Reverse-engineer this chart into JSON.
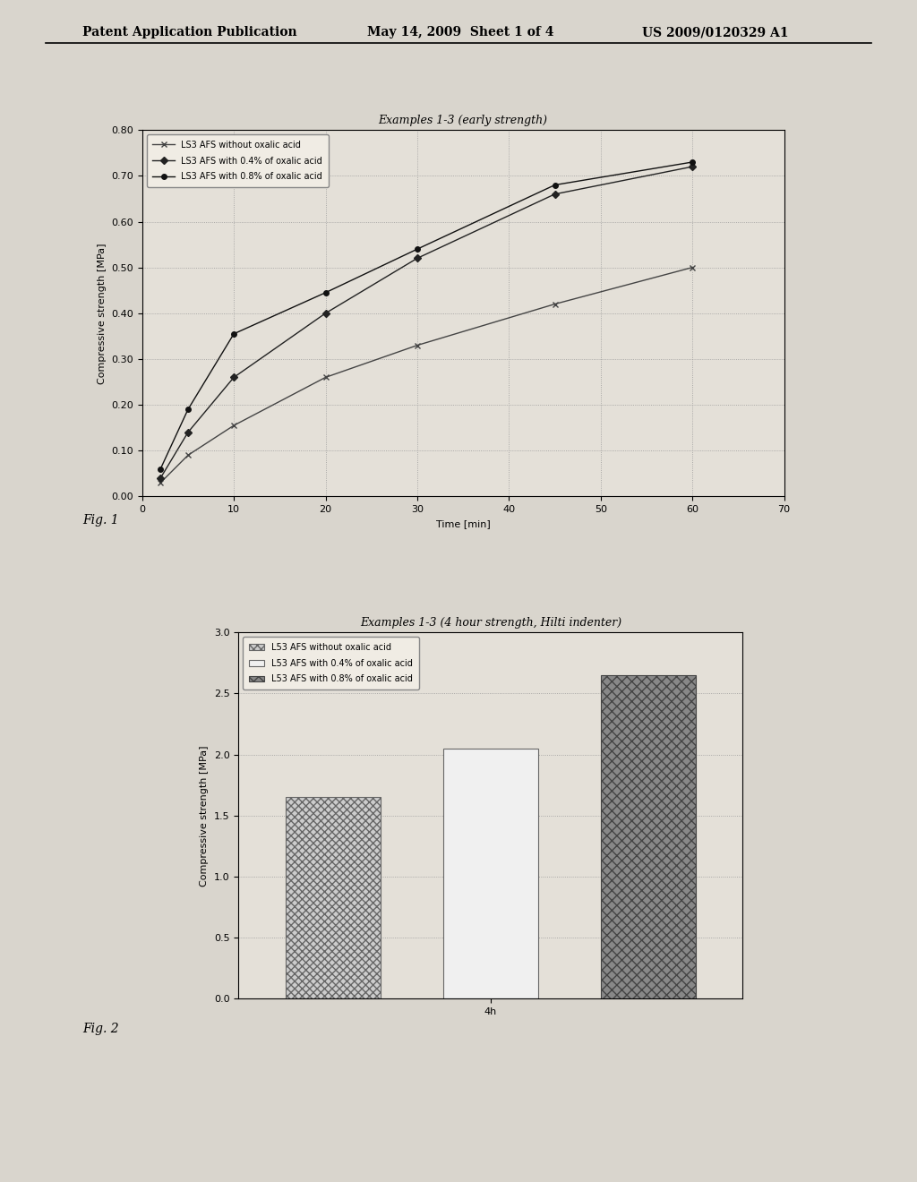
{
  "fig1_title": "Examples 1-3 (early strength)",
  "fig1_xlabel": "Time [min]",
  "fig1_ylabel": "Compressive strength [MPa]",
  "fig1_xlim": [
    0,
    70
  ],
  "fig1_ylim": [
    0.0,
    0.8
  ],
  "fig1_xticks": [
    0,
    10,
    20,
    30,
    40,
    50,
    60,
    70
  ],
  "fig1_yticks": [
    0.0,
    0.1,
    0.2,
    0.3,
    0.4,
    0.5,
    0.6,
    0.7,
    0.8
  ],
  "fig1_series": [
    {
      "label": "LS3 AFS without oxalic acid",
      "x": [
        2,
        5,
        10,
        20,
        30,
        45,
        60
      ],
      "y": [
        0.03,
        0.09,
        0.155,
        0.26,
        0.33,
        0.42,
        0.5
      ],
      "marker": "x",
      "color": "#444444",
      "linestyle": "-"
    },
    {
      "label": "LS3 AFS with 0.4% of oxalic acid",
      "x": [
        2,
        5,
        10,
        20,
        30,
        45,
        60
      ],
      "y": [
        0.04,
        0.14,
        0.26,
        0.4,
        0.52,
        0.66,
        0.72
      ],
      "marker": "D",
      "color": "#222222",
      "linestyle": "-"
    },
    {
      "label": "LS3 AFS with 0.8% of oxalic acid",
      "x": [
        2,
        5,
        10,
        20,
        30,
        45,
        60
      ],
      "y": [
        0.06,
        0.19,
        0.355,
        0.445,
        0.54,
        0.68,
        0.73
      ],
      "marker": "o",
      "color": "#111111",
      "linestyle": "-"
    }
  ],
  "fig1_label": "Fig. 1",
  "fig2_title": "Examples 1-3 (4 hour strength, Hilti indenter)",
  "fig2_xlabel": "4h",
  "fig2_ylabel": "Compressive strength [MPa]",
  "fig2_xlim": [
    -0.6,
    2.6
  ],
  "fig2_ylim": [
    0.0,
    3.0
  ],
  "fig2_yticks": [
    0.0,
    0.5,
    1.0,
    1.5,
    2.0,
    2.5,
    3.0
  ],
  "fig2_bars": [
    {
      "label": "L53 AFS without oxalic acid",
      "value": 1.65,
      "hatch": "xxxx",
      "facecolor": "#cccccc",
      "edgecolor": "#666666"
    },
    {
      "label": "L53 AFS with 0.4% of oxalic acid",
      "value": 2.05,
      "hatch": "",
      "facecolor": "#f0f0f0",
      "edgecolor": "#666666"
    },
    {
      "label": "L53 AFS with 0.8% of oxalic acid",
      "value": 2.65,
      "hatch": "xxx",
      "facecolor": "#888888",
      "edgecolor": "#444444"
    }
  ],
  "fig2_label": "Fig. 2",
  "header_left": "Patent Application Publication",
  "header_mid": "May 14, 2009  Sheet 1 of 4",
  "header_right": "US 2009/0120329 A1",
  "bg_color": "#d9d5cd",
  "plot_bg": "#e4e0d8",
  "font_size": 8,
  "title_font_size": 9
}
